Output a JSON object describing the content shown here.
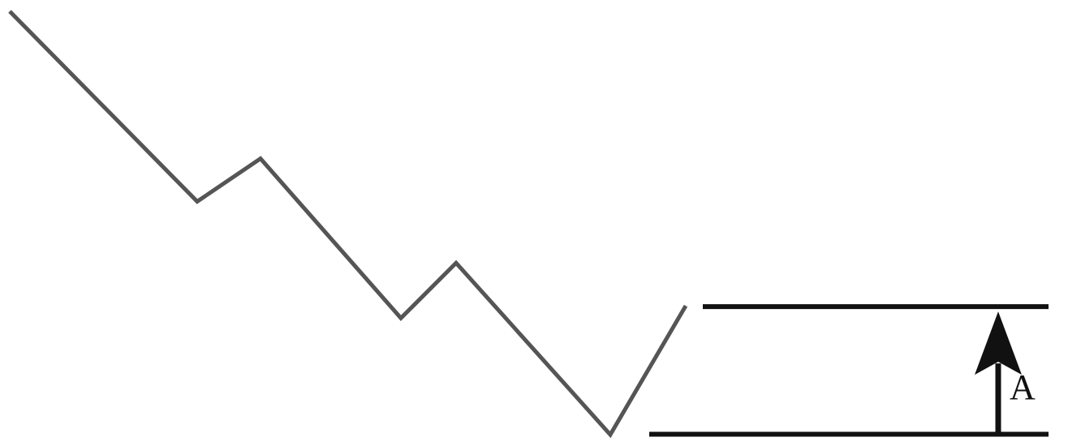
{
  "diagram": {
    "type": "price-pattern-illustration",
    "colors": {
      "price_line": "#555555",
      "levels": "#111111",
      "arrow": "#111111",
      "label": "#111111",
      "background": "#ffffff"
    },
    "zigzag_vertices": [
      {
        "step": 0,
        "price": 100
      },
      {
        "step": 1,
        "price": 69
      },
      {
        "step": 2,
        "price": 76
      },
      {
        "step": 3,
        "price": 50
      },
      {
        "step": 4,
        "price": 59
      },
      {
        "step": 5,
        "price": 31
      },
      {
        "step": 6,
        "price": 52
      }
    ],
    "levels": {
      "upper": 52,
      "lower": 31
    },
    "arrow": {
      "direction": "up",
      "from": "lower",
      "to": "upper"
    },
    "label": "A"
  }
}
